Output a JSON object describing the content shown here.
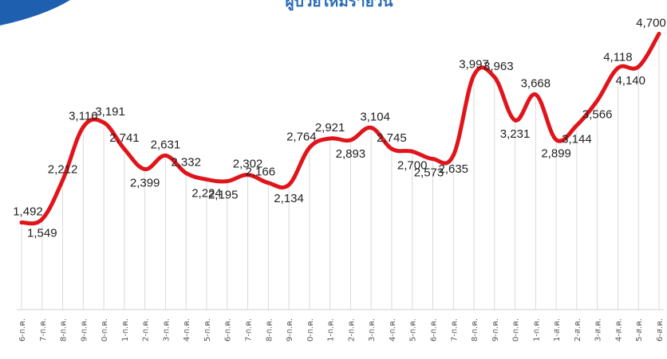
{
  "chart_data": {
    "type": "line",
    "title": "ผู้ป่วยใหม่รายวัน",
    "xlabel": "",
    "ylabel": "",
    "ylim": [
      0,
      4800
    ],
    "grid": "vertical",
    "categories": [
      "6-ก.ค.",
      "7-ก.ค.",
      "8-ก.ค.",
      "9-ก.ค.",
      "0-ก.ค.",
      "1-ก.ค.",
      "2-ก.ค.",
      "3-ก.ค.",
      "4-ก.ค.",
      "5-ก.ค.",
      "6-ก.ค.",
      "7-ก.ค.",
      "8-ก.ค.",
      "9-ก.ค.",
      "0-ก.ค.",
      "1-ก.ค.",
      "2-ก.ค.",
      "3-ก.ค.",
      "4-ก.ค.",
      "5-ก.ค.",
      "6-ก.ค.",
      "7-ก.ค.",
      "8-ก.ค.",
      "9-ก.ค.",
      "0-ก.ค.",
      "1-ก.ค.",
      "1-ส.ค.",
      "2-ส.ค.",
      "3-ส.ค.",
      "4-ส.ค.",
      "5-ส.ค.",
      "6-ส.ค."
    ],
    "values": [
      1492,
      1549,
      2212,
      3116,
      3191,
      2741,
      2399,
      2631,
      2332,
      2224,
      2195,
      2302,
      2166,
      2134,
      2764,
      2921,
      2893,
      3104,
      2745,
      2700,
      2573,
      2635,
      3997,
      3963,
      3231,
      3668,
      2899,
      3144,
      3566,
      4118,
      4140,
      4700
    ],
    "labels": [
      "1,492",
      "1,549",
      "2,212",
      "3,116",
      "3,191",
      "2,741",
      "2,399",
      "2,631",
      "2,332",
      "2,224",
      "2,195",
      "2,302",
      "2,166",
      "2,134",
      "2,764",
      "2,921",
      "2,893",
      "3,104",
      "2,745",
      "2,700",
      "2,573",
      "2,635",
      "3,997",
      "3,963",
      "3,231",
      "3,668",
      "2,899",
      "3,144",
      "3,566",
      "4,118",
      "4,140",
      "4,700"
    ],
    "colors": {
      "line": "#e0151b",
      "title": "#2a6cb8",
      "corner": "#1f5fb0"
    }
  }
}
